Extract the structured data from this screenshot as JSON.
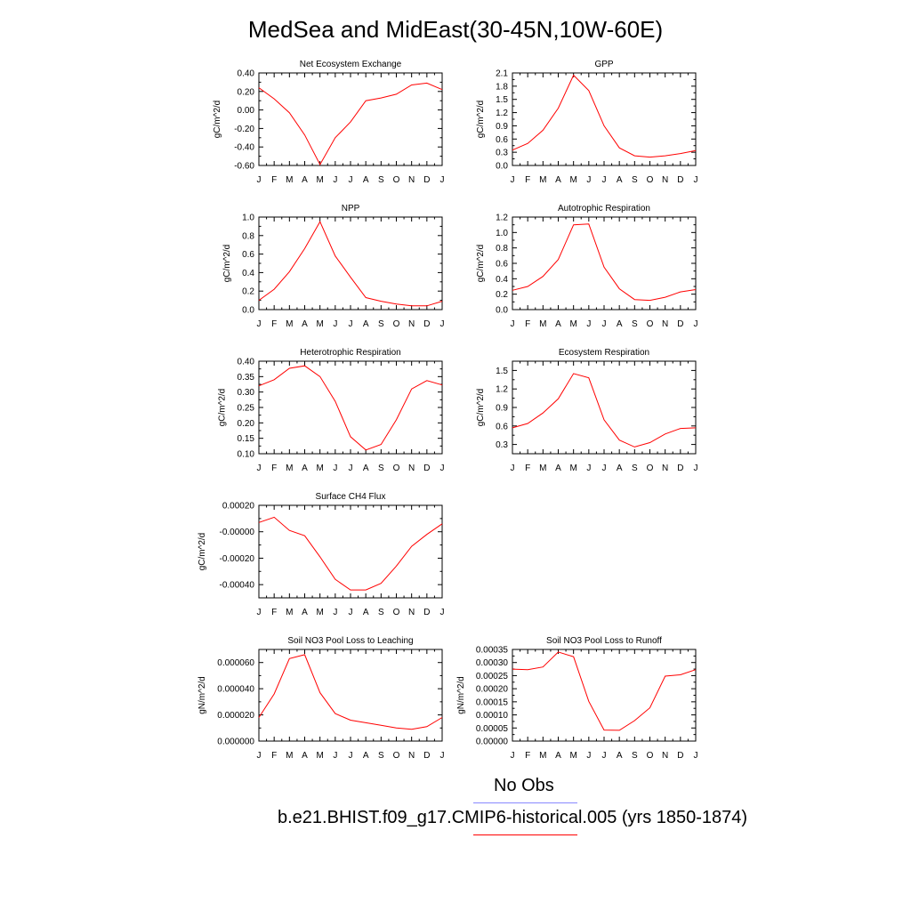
{
  "figure": {
    "title": "MedSea and MidEast(30-45N,10W-60E)"
  },
  "legend": {
    "obs_label": "No Obs",
    "obs_color": "#8888ff",
    "model_label": "b.e21.BHIST.f09_g17.CMIP6-historical.005 (yrs 1850-1874)",
    "model_color": "#ff0000"
  },
  "chart_data": [
    {
      "type": "line",
      "title": "Net Ecosystem Exchange",
      "ylabel": "gC/m^2/d",
      "categories": [
        "J",
        "F",
        "M",
        "A",
        "M",
        "J",
        "J",
        "A",
        "S",
        "O",
        "N",
        "D",
        "J"
      ],
      "ylim": [
        -0.6,
        0.4
      ],
      "yticks": [
        0.4,
        0.2,
        0.0,
        -0.2,
        -0.4,
        -0.6
      ],
      "ytick_labels": [
        "0.40",
        "0.20",
        "0.00",
        "-0.20",
        "-0.40",
        "-0.60"
      ],
      "series": [
        {
          "values": [
            0.24,
            0.12,
            -0.03,
            -0.27,
            -0.59,
            -0.3,
            -0.13,
            0.1,
            0.13,
            0.17,
            0.27,
            0.29,
            0.22
          ]
        }
      ]
    },
    {
      "type": "line",
      "title": "GPP",
      "ylabel": "gC/m^2/d",
      "categories": [
        "J",
        "F",
        "M",
        "A",
        "M",
        "J",
        "J",
        "A",
        "S",
        "O",
        "N",
        "D",
        "J"
      ],
      "ylim": [
        0.0,
        2.1
      ],
      "yticks": [
        2.1,
        1.8,
        1.5,
        1.2,
        0.9,
        0.6,
        0.3,
        0.0
      ],
      "ytick_labels": [
        "2.1",
        "1.8",
        "1.5",
        "1.2",
        "0.9",
        "0.6",
        "0.3",
        "0.0"
      ],
      "series": [
        {
          "values": [
            0.35,
            0.5,
            0.8,
            1.3,
            2.05,
            1.7,
            0.9,
            0.4,
            0.22,
            0.19,
            0.22,
            0.27,
            0.34
          ]
        }
      ]
    },
    {
      "type": "line",
      "title": "NPP",
      "ylabel": "gC/m^2/d",
      "categories": [
        "J",
        "F",
        "M",
        "A",
        "M",
        "J",
        "J",
        "A",
        "S",
        "O",
        "N",
        "D",
        "J"
      ],
      "ylim": [
        0.0,
        1.0
      ],
      "yticks": [
        1.0,
        0.8,
        0.6,
        0.4,
        0.2,
        0.0
      ],
      "ytick_labels": [
        "1.0",
        "0.8",
        "0.6",
        "0.4",
        "0.2",
        "0.0"
      ],
      "series": [
        {
          "values": [
            0.1,
            0.22,
            0.41,
            0.66,
            0.95,
            0.58,
            0.35,
            0.13,
            0.09,
            0.06,
            0.04,
            0.04,
            0.09
          ]
        }
      ]
    },
    {
      "type": "line",
      "title": "Autotrophic Respiration",
      "ylabel": "gC/m^2/d",
      "categories": [
        "J",
        "F",
        "M",
        "A",
        "M",
        "J",
        "J",
        "A",
        "S",
        "O",
        "N",
        "D",
        "J"
      ],
      "ylim": [
        0.0,
        1.2
      ],
      "yticks": [
        1.2,
        1.0,
        0.8,
        0.6,
        0.4,
        0.2,
        0.0
      ],
      "ytick_labels": [
        "1.2",
        "1.0",
        "0.8",
        "0.6",
        "0.4",
        "0.2",
        "0.0"
      ],
      "series": [
        {
          "values": [
            0.25,
            0.3,
            0.43,
            0.65,
            1.1,
            1.11,
            0.55,
            0.27,
            0.13,
            0.12,
            0.16,
            0.23,
            0.26
          ]
        }
      ]
    },
    {
      "type": "line",
      "title": "Heterotrophic Respiration",
      "ylabel": "gC/m^2/d",
      "categories": [
        "J",
        "F",
        "M",
        "A",
        "M",
        "J",
        "J",
        "A",
        "S",
        "O",
        "N",
        "D",
        "J"
      ],
      "ylim": [
        0.1,
        0.4
      ],
      "yticks": [
        0.4,
        0.35,
        0.3,
        0.25,
        0.2,
        0.15,
        0.1
      ],
      "ytick_labels": [
        "0.40",
        "0.35",
        "0.30",
        "0.25",
        "0.20",
        "0.15",
        "0.10"
      ],
      "series": [
        {
          "values": [
            0.32,
            0.34,
            0.377,
            0.385,
            0.35,
            0.27,
            0.155,
            0.112,
            0.13,
            0.21,
            0.31,
            0.337,
            0.323
          ]
        }
      ]
    },
    {
      "type": "line",
      "title": "Ecosystem Respiration",
      "ylabel": "gC/m^2/d",
      "categories": [
        "J",
        "F",
        "M",
        "A",
        "M",
        "J",
        "J",
        "A",
        "S",
        "O",
        "N",
        "D",
        "J"
      ],
      "ylim": [
        0.15,
        1.65
      ],
      "yticks": [
        1.5,
        1.2,
        0.9,
        0.6,
        0.3
      ],
      "ytick_labels": [
        "1.5",
        "1.2",
        "0.9",
        "0.6",
        "0.3"
      ],
      "series": [
        {
          "values": [
            0.57,
            0.64,
            0.81,
            1.04,
            1.45,
            1.38,
            0.7,
            0.37,
            0.26,
            0.33,
            0.47,
            0.56,
            0.57
          ]
        }
      ]
    },
    {
      "type": "line",
      "title": "Surface CH4 Flux",
      "ylabel": "gC/m^2/d",
      "categories": [
        "J",
        "F",
        "M",
        "A",
        "M",
        "J",
        "J",
        "A",
        "S",
        "O",
        "N",
        "D",
        "J"
      ],
      "ylim": [
        -0.0005,
        0.0002
      ],
      "yticks": [
        0.0002,
        0.0,
        -0.0002,
        -0.0004
      ],
      "ytick_labels": [
        "0.00020",
        "-0.00000",
        "-0.00020",
        "-0.00040"
      ],
      "series": [
        {
          "values": [
            7e-05,
            0.00011,
            1e-05,
            -3e-05,
            -0.00019,
            -0.00036,
            -0.00044,
            -0.00044,
            -0.00039,
            -0.00026,
            -0.00011,
            -2e-05,
            6e-05
          ]
        }
      ]
    },
    {
      "type": "line",
      "title": "Soil NO3 Pool Loss to Leaching",
      "ylabel": "gN/m^2/d",
      "categories": [
        "J",
        "F",
        "M",
        "A",
        "M",
        "J",
        "J",
        "A",
        "S",
        "O",
        "N",
        "D",
        "J"
      ],
      "ylim": [
        0.0,
        7e-05
      ],
      "yticks": [
        6e-05,
        4e-05,
        2e-05,
        0.0
      ],
      "ytick_labels": [
        "0.000060",
        "0.000040",
        "0.000020",
        "0.000000"
      ],
      "series": [
        {
          "values": [
            1.8e-05,
            3.6e-05,
            6.3e-05,
            6.6e-05,
            3.7e-05,
            2.1e-05,
            1.6e-05,
            1.4e-05,
            1.2e-05,
            1e-05,
            9e-06,
            1.1e-05,
            1.8e-05
          ]
        }
      ]
    },
    {
      "type": "line",
      "title": "Soil NO3 Pool Loss to Runoff",
      "ylabel": "gN/m^2/d",
      "categories": [
        "J",
        "F",
        "M",
        "A",
        "M",
        "J",
        "J",
        "A",
        "S",
        "O",
        "N",
        "D",
        "J"
      ],
      "ylim": [
        0.0,
        0.00035
      ],
      "yticks": [
        0.00035,
        0.0003,
        0.00025,
        0.0002,
        0.00015,
        0.0001,
        5e-05,
        0.0
      ],
      "ytick_labels": [
        "0.00035",
        "0.00030",
        "0.00025",
        "0.00020",
        "0.00015",
        "0.00010",
        "0.00005",
        "0.00000"
      ],
      "series": [
        {
          "values": [
            0.000275,
            0.000273,
            0.000283,
            0.00034,
            0.000322,
            0.000152,
            4.2e-05,
            4.1e-05,
            7.8e-05,
            0.000127,
            0.000248,
            0.000253,
            0.000273
          ]
        }
      ]
    }
  ]
}
